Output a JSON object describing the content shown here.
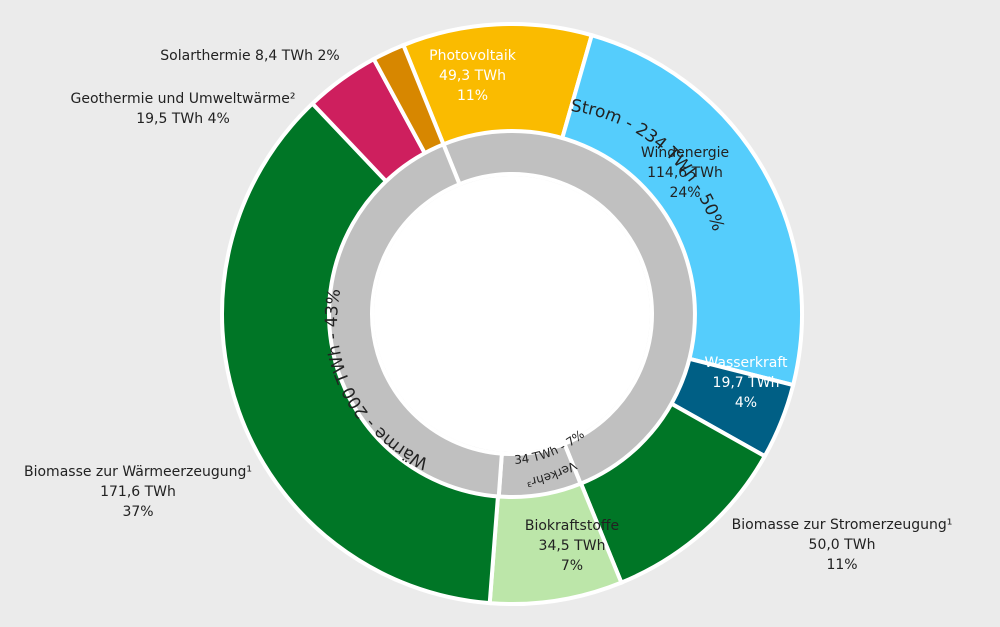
{
  "chart_data": {
    "type": "pie",
    "style": "nested-donut",
    "outer_ring": [
      {
        "name": "Photovoltaik",
        "value_text": "49,3 TWh",
        "share_text": "11%",
        "value": 49.3,
        "share": 11,
        "color": "#fabb00"
      },
      {
        "name": "Windenergie",
        "value_text": "114,6 TWh",
        "share_text": "24%",
        "value": 114.6,
        "share": 24,
        "color": "#55cdfc"
      },
      {
        "name": "Wasserkraft",
        "value_text": "19,7 TWh",
        "share_text": "4%",
        "value": 19.7,
        "share": 4,
        "color": "#005f85"
      },
      {
        "name": "Biomasse zur Stromerzeugung¹",
        "value_text": "50,0 TWh",
        "share_text": "11%",
        "value": 50.0,
        "share": 11,
        "color": "#007626"
      },
      {
        "name": "Biokraftstoffe",
        "value_text": "34,5 TWh",
        "share_text": "7%",
        "value": 34.5,
        "share": 7,
        "color": "#bce6a9"
      },
      {
        "name": "Biomasse zur Wärmeerzeugung¹",
        "value_text": "171,6 TWh",
        "share_text": "37%",
        "value": 171.6,
        "share": 37,
        "color": "#007626"
      },
      {
        "name": "Geothermie und Umweltwärme²",
        "value_text": "19,5 TWh",
        "share_text": "4%",
        "value": 19.5,
        "share": 4,
        "color": "#ce1f5e"
      },
      {
        "name": "Solarthermie",
        "value_text": "8,4 TWh",
        "share_text": "2%",
        "value": 8.4,
        "share": 2,
        "color": "#d78700"
      }
    ],
    "inner_ring": [
      {
        "label": "Strom - 234 TWh - 50%",
        "value": 234,
        "share": 50
      },
      {
        "label": "Verkehr³",
        "label2": "34 TWh - 7%",
        "value": 34,
        "share": 7
      },
      {
        "label": "Wärme - 200 TWh - 43%",
        "value": 200,
        "share": 43
      }
    ],
    "inner_color": "#c0c0c0"
  }
}
